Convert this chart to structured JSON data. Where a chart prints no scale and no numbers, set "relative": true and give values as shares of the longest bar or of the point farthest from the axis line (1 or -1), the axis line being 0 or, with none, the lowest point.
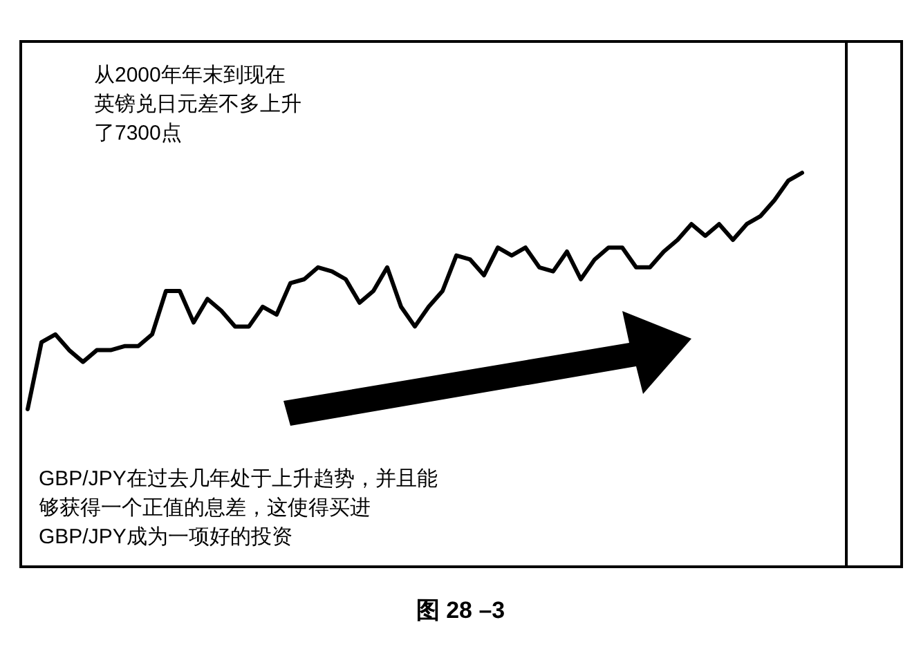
{
  "chart_data": {
    "type": "line",
    "title": "图 28 –3",
    "relative": true,
    "color": "#000000",
    "categories": [
      null,
      null,
      null,
      null,
      null,
      null,
      null,
      null,
      null,
      null,
      null,
      null,
      null,
      null,
      null,
      null,
      null,
      null,
      null,
      null,
      null,
      null,
      null,
      null,
      null,
      null,
      null,
      null,
      null,
      null,
      null,
      null,
      null,
      null,
      null,
      null,
      null,
      null,
      null,
      null,
      null,
      null,
      null,
      null,
      null,
      null,
      null,
      null,
      null,
      null,
      null,
      null,
      null,
      null,
      null,
      null,
      null
    ],
    "values": [
      0.4,
      0.57,
      0.59,
      0.55,
      0.52,
      0.55,
      0.55,
      0.56,
      0.56,
      0.59,
      0.7,
      0.7,
      0.62,
      0.68,
      0.65,
      0.61,
      0.61,
      0.66,
      0.64,
      0.72,
      0.73,
      0.76,
      0.75,
      0.73,
      0.67,
      0.7,
      0.76,
      0.66,
      0.61,
      0.66,
      0.7,
      0.79,
      0.78,
      0.74,
      0.81,
      0.79,
      0.81,
      0.76,
      0.75,
      0.8,
      0.73,
      0.78,
      0.81,
      0.81,
      0.76,
      0.76,
      0.8,
      0.83,
      0.87,
      0.84,
      0.87,
      0.83,
      0.87,
      0.89,
      0.93,
      0.98,
      1
    ],
    "annotations": [
      "从2000年年末到现在英镑兑日元差不多上升了7300点",
      "GBP/JPY在过去几年处于上升趋势，并且能够获得一个正值的息差，这使得买进GBP/JPY成为一项好的投资"
    ]
  }
}
